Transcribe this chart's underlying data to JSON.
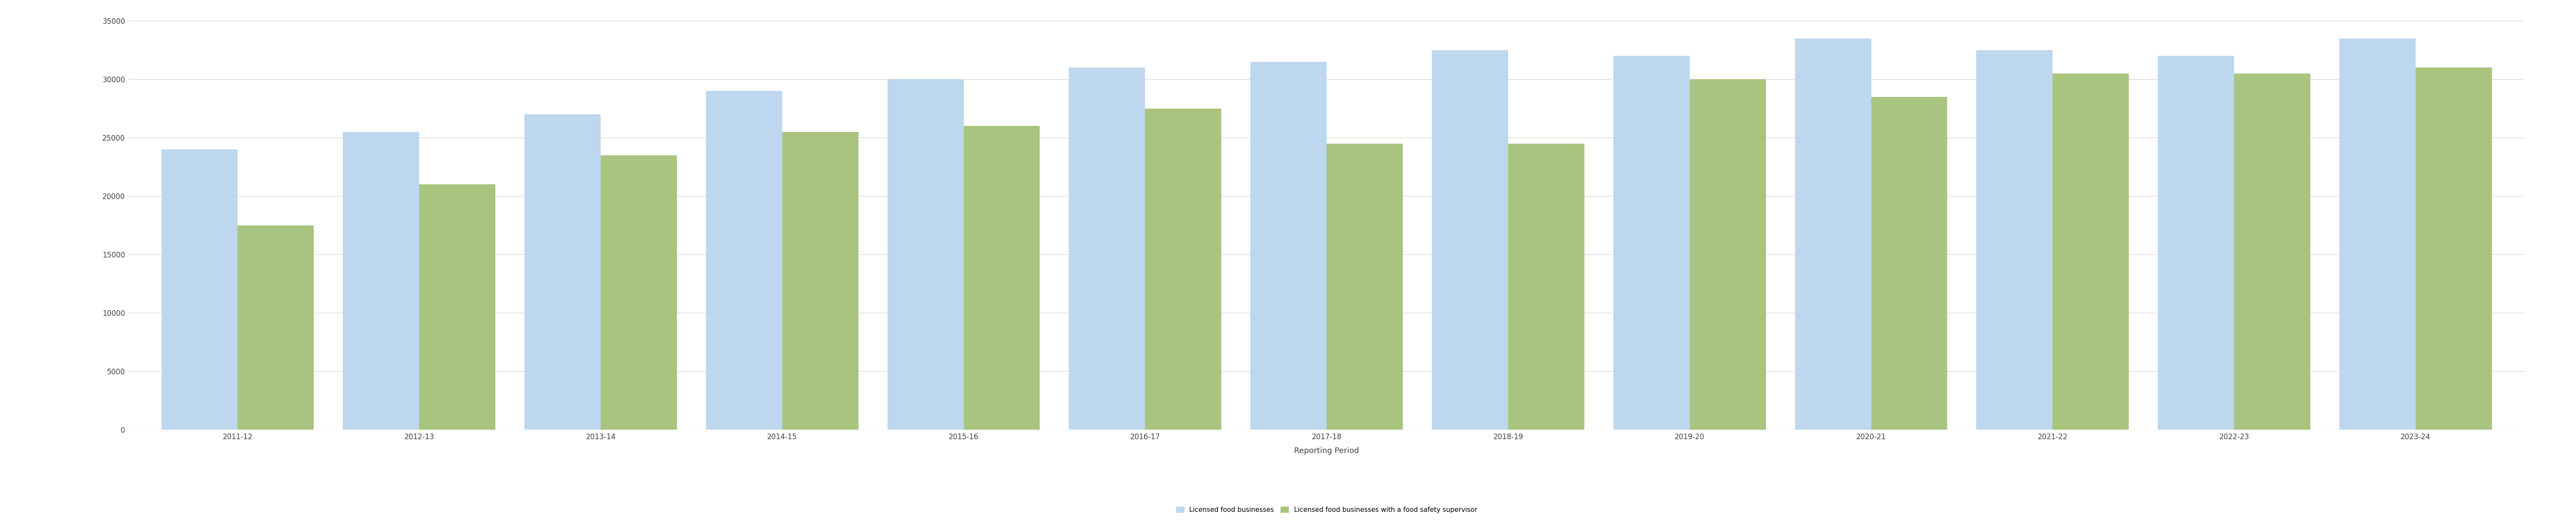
{
  "categories": [
    "2011-12",
    "2012-13",
    "2013-14",
    "2014-15",
    "2015-16",
    "2016-17",
    "2017-18",
    "2018-19",
    "2019-20",
    "2020-21",
    "2021-22",
    "2022-23",
    "2023-24"
  ],
  "licensed_food_businesses": [
    24000,
    25500,
    27000,
    29000,
    30000,
    31000,
    31500,
    32500,
    32000,
    33500,
    32500,
    32000,
    33500
  ],
  "food_safety_supervisors": [
    17500,
    21000,
    23500,
    25500,
    26000,
    27500,
    24500,
    24500,
    30000,
    28500,
    30500,
    30500,
    31000
  ],
  "bar_color_blue": "#bdd7ee",
  "bar_color_green": "#a9c47e",
  "xlabel": "Reporting Period",
  "ylabel": "",
  "ylim": [
    0,
    35000
  ],
  "yticks": [
    0,
    5000,
    10000,
    15000,
    20000,
    25000,
    30000,
    35000
  ],
  "legend_label_blue": "Licensed food businesses",
  "legend_label_green": "Licensed food businesses with a food safety supervisor",
  "background_color": "#ffffff",
  "grid_color": "#d0d0d0",
  "bar_width": 0.42,
  "figwidth": 59.44,
  "figheight": 12.11,
  "axis_fontsize": 13,
  "tick_fontsize": 12,
  "legend_fontsize": 11
}
